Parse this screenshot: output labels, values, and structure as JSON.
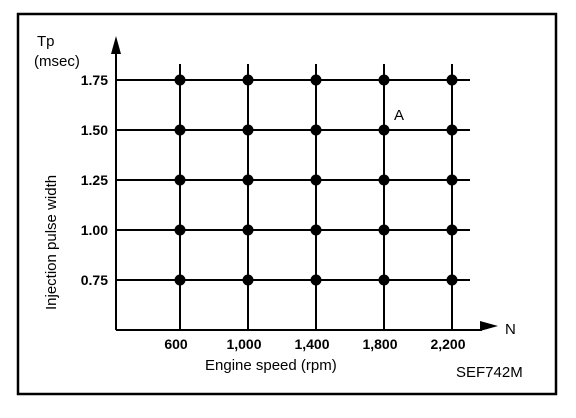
{
  "chart_data": {
    "type": "scatter",
    "xlabel": "Engine speed (rpm)",
    "ylabel": "Injection pulse width",
    "y_symbol": "Tp",
    "y_unit": "(msec)",
    "x_symbol": "N",
    "x_ticks": [
      "600",
      "1,000",
      "1,400",
      "1,800",
      "2,200"
    ],
    "y_ticks": [
      "1.75",
      "1.50",
      "1.25",
      "1.00",
      "0.75"
    ],
    "x_values": [
      600,
      1000,
      1400,
      1800,
      2200
    ],
    "y_values": [
      1.75,
      1.5,
      1.25,
      1.0,
      0.75
    ],
    "grid": true,
    "annotations": [
      {
        "text": "A",
        "x": 1800,
        "y": 1.5
      }
    ],
    "figure_code": "SEF742M"
  }
}
